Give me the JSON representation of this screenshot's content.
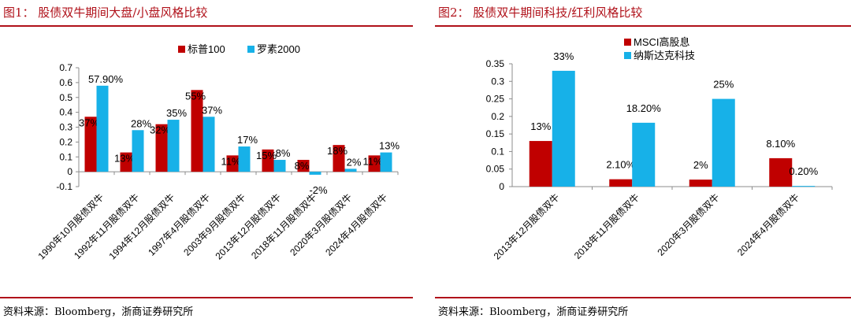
{
  "panels": [
    {
      "title": "图1： 股债双牛期间大盘/小盘风格比较",
      "source": "资料来源：Bloomberg，浙商证券研究所"
    },
    {
      "title": "图2： 股债双牛期间科技/红利风格比较",
      "source": "资料来源：Bloomberg，浙商证券研究所"
    }
  ],
  "colors": {
    "accent": "#b0111a",
    "series_red": "#c00000",
    "series_blue": "#17b1e8"
  },
  "chart_data": [
    {
      "type": "bar",
      "categories": [
        "1990年10月股债双牛",
        "1992年11月股债双牛",
        "1994年12月股债双牛",
        "1997年4月股债双牛",
        "2003年9月股债双牛",
        "2013年12月股债双牛",
        "2018年11月股债双牛",
        "2020年3月股债双牛",
        "2024年4月股债双牛"
      ],
      "series": [
        {
          "name": "标普100",
          "values": [
            0.37,
            0.13,
            0.32,
            0.55,
            0.11,
            0.15,
            0.08,
            0.18,
            0.11
          ],
          "labels": [
            "37%",
            "13%",
            "32%",
            "55%",
            "11%",
            "15%",
            "8%",
            "18%",
            "11%"
          ]
        },
        {
          "name": "罗素2000",
          "values": [
            0.579,
            0.28,
            0.35,
            0.37,
            0.17,
            0.08,
            -0.02,
            0.02,
            0.13
          ],
          "labels": [
            "57.90%",
            "28%",
            "35%",
            "37%",
            "17%",
            "8%",
            "-2%",
            "2%",
            "13%"
          ]
        }
      ],
      "yticks": [
        "-0.1",
        "0",
        "0.1",
        "0.2",
        "0.3",
        "0.4",
        "0.5",
        "0.6",
        "0.7"
      ],
      "ylim": [
        -0.1,
        0.7
      ],
      "legend": "top"
    },
    {
      "type": "bar",
      "categories": [
        "2013年12月股债双牛",
        "2018年11月股债双牛",
        "2020年3月股债双牛",
        "2024年4月股债双牛"
      ],
      "series": [
        {
          "name": "MSCI高股息",
          "values": [
            0.13,
            0.021,
            0.02,
            0.081
          ],
          "labels": [
            "13%",
            "2.10%",
            "2%",
            "8.10%"
          ]
        },
        {
          "name": "纳斯达克科技",
          "values": [
            0.33,
            0.182,
            0.25,
            0.002
          ],
          "labels": [
            "33%",
            "18.20%",
            "25%",
            "0.20%"
          ]
        }
      ],
      "yticks": [
        "0",
        "0.05",
        "0.1",
        "0.15",
        "0.2",
        "0.25",
        "0.3",
        "0.35"
      ],
      "ylim": [
        0,
        0.35
      ],
      "legend": "top"
    }
  ]
}
